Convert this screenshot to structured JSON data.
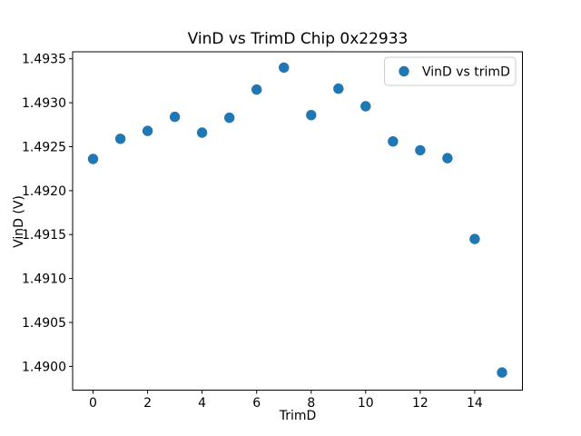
{
  "figure": {
    "title": "VinD vs TrimD Chip 0x22933",
    "xlabel": "TrimD",
    "ylabel": "VinD (V)",
    "legend_label": "VinD vs trimD"
  },
  "colors": {
    "marker": "#1f77b4",
    "spine": "#000000",
    "legend_border": "#cccccc",
    "background": "#ffffff"
  },
  "chart_data": {
    "type": "scatter",
    "title": "VinD vs TrimD Chip 0x22933",
    "xlabel": "TrimD",
    "ylabel": "VinD (V)",
    "legend": {
      "position": "upper right",
      "entries": [
        "VinD vs trimD"
      ]
    },
    "x": [
      0,
      1,
      2,
      3,
      4,
      5,
      6,
      7,
      8,
      9,
      10,
      11,
      12,
      13,
      14,
      15
    ],
    "y": [
      1.49236,
      1.49259,
      1.49268,
      1.49284,
      1.49266,
      1.49283,
      1.49315,
      1.4934,
      1.49286,
      1.49316,
      1.49296,
      1.49256,
      1.49246,
      1.49237,
      1.49145,
      1.48993
    ],
    "xlim": [
      -0.75,
      15.75
    ],
    "ylim": [
      1.48973,
      1.49358
    ],
    "xticks": [
      0,
      2,
      4,
      6,
      8,
      10,
      12,
      14
    ],
    "xtick_labels": [
      "0",
      "2",
      "4",
      "6",
      "8",
      "10",
      "12",
      "14"
    ],
    "yticks": [
      1.49,
      1.4905,
      1.491,
      1.4915,
      1.492,
      1.4925,
      1.493,
      1.4935
    ],
    "ytick_labels": [
      "1.4900",
      "1.4905",
      "1.4910",
      "1.4915",
      "1.4920",
      "1.4925",
      "1.4930",
      "1.4935"
    ],
    "grid": false,
    "marker_color": "#1f77b4",
    "marker_radius_px": 5.7
  }
}
